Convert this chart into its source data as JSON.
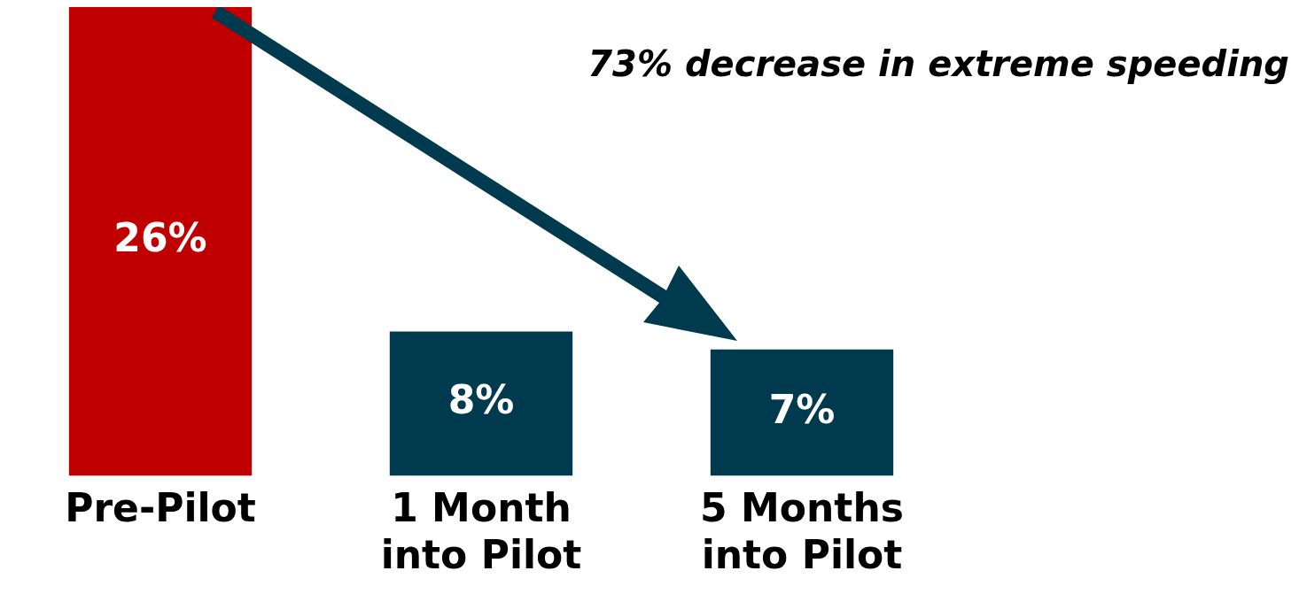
{
  "chart_data": {
    "type": "bar",
    "categories": [
      "Pre-Pilot",
      "1 Month into Pilot",
      "5 Months into Pilot"
    ],
    "values": [
      26,
      8,
      7
    ],
    "colors": [
      "#c00000",
      "#003a4f",
      "#003a4f"
    ],
    "value_labels": [
      "26%",
      "8%",
      "7%"
    ],
    "tick_labels": "x",
    "grid": false,
    "legend": false,
    "annotations": [
      "73% decrease in extreme speeding"
    ]
  }
}
